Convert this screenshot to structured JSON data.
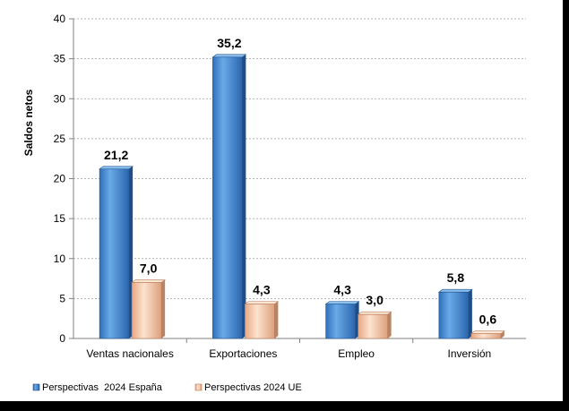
{
  "chart_data": {
    "type": "bar",
    "title": "",
    "xlabel": "",
    "ylabel": "Saldos netos",
    "ylim": [
      0,
      40
    ],
    "yticks": [
      0,
      5,
      10,
      15,
      20,
      25,
      30,
      35,
      40
    ],
    "grid": true,
    "legend_position": "bottom-left",
    "categories": [
      "Ventas nacionales",
      "Exportaciones",
      "Empleo",
      "Inversión"
    ],
    "series": [
      {
        "name": "Perspectivas  2024 España",
        "color": "#4a90d9",
        "values": [
          21.2,
          35.2,
          4.3,
          5.8
        ],
        "labels": [
          "21,2",
          "35,2",
          "4,3",
          "5,8"
        ]
      },
      {
        "name": "Perspectivas 2024 UE",
        "color": "#f5c9a8",
        "values": [
          7.0,
          4.3,
          3.0,
          0.6
        ],
        "labels": [
          "7,0",
          "4,3",
          "3,0",
          "0,6"
        ]
      }
    ]
  }
}
